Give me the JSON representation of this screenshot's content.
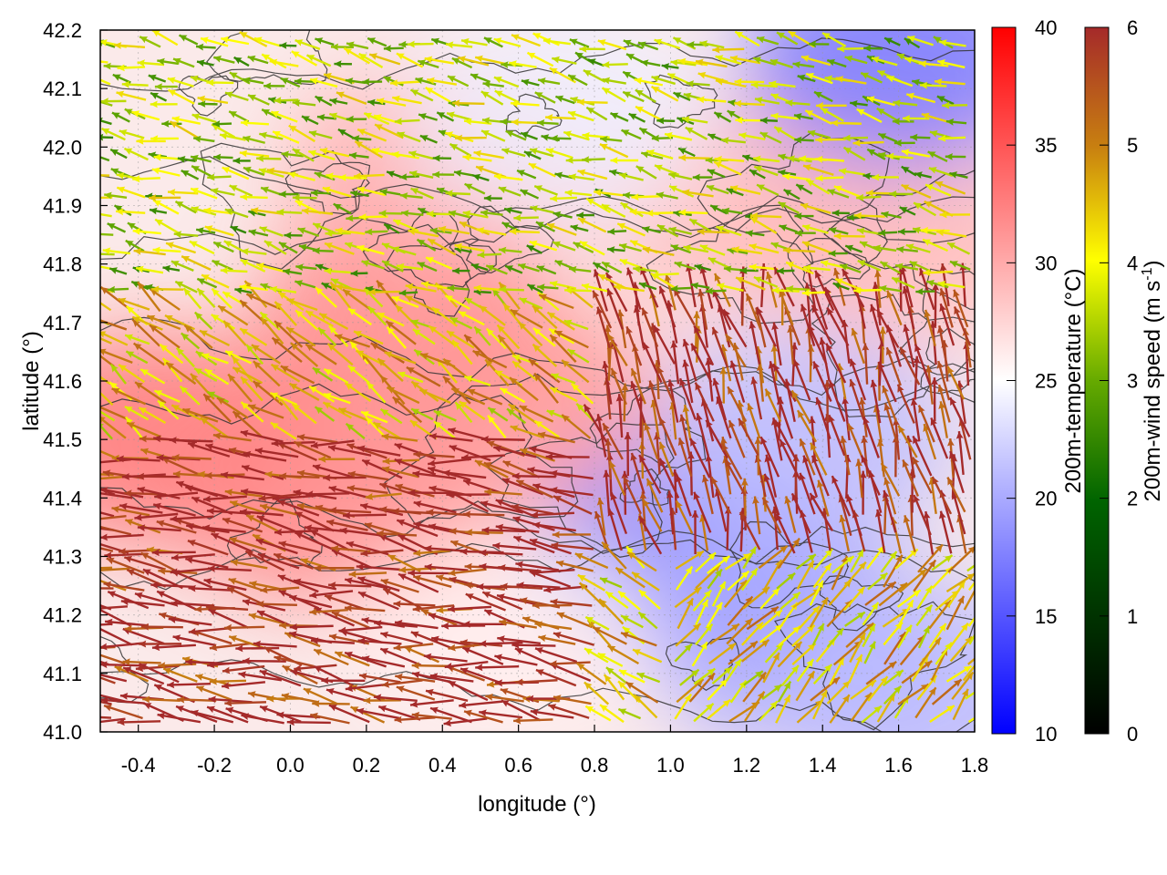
{
  "chart_data": {
    "type": "heatmap",
    "subtype": "map-with-wind-vectors-and-contours",
    "xlabel": "longitude (°)",
    "ylabel": "latitude (°)",
    "xlim": [
      -0.5,
      1.8
    ],
    "ylim": [
      41.0,
      42.2
    ],
    "xticks": [
      "-0.4",
      "-0.2",
      "0.0",
      "0.2",
      "0.4",
      "0.6",
      "0.8",
      "1.0",
      "1.2",
      "1.4",
      "1.6",
      "1.8"
    ],
    "xtick_values": [
      -0.4,
      -0.2,
      0.0,
      0.2,
      0.4,
      0.6,
      0.8,
      1.0,
      1.2,
      1.4,
      1.6,
      1.8
    ],
    "yticks": [
      "41.0",
      "41.1",
      "41.2",
      "41.3",
      "41.4",
      "41.5",
      "41.6",
      "41.7",
      "41.8",
      "41.9",
      "42.0",
      "42.1",
      "42.2"
    ],
    "ytick_values": [
      41.0,
      41.1,
      41.2,
      41.3,
      41.4,
      41.5,
      41.6,
      41.7,
      41.8,
      41.9,
      42.0,
      42.1,
      42.2
    ],
    "grid": true,
    "temperature_colorbar": {
      "label": "200m-temperature (°C)",
      "range": [
        10,
        40
      ],
      "ticks": [
        "10",
        "15",
        "20",
        "25",
        "30",
        "35",
        "40"
      ],
      "tick_values": [
        10,
        15,
        20,
        25,
        30,
        35,
        40
      ],
      "colors": [
        "#0000ff",
        "#ffffff",
        "#ff0000"
      ]
    },
    "wind_colorbar": {
      "label": "200m-wind speed (m s-1)",
      "label_main": "200m-wind speed (m s",
      "label_sup": "-1",
      "label_end": ")",
      "range": [
        0,
        6
      ],
      "ticks": [
        "0",
        "1",
        "2",
        "3",
        "4",
        "5",
        "6"
      ],
      "tick_values": [
        0,
        1,
        2,
        3,
        4,
        5,
        6
      ],
      "colors": [
        "#000000",
        "#006400",
        "#ffff00",
        "#b22222"
      ]
    },
    "temperature_regions": [
      {
        "lon": -0.35,
        "lat": 41.5,
        "temp": 33
      },
      {
        "lon": 0.1,
        "lat": 41.4,
        "temp": 32
      },
      {
        "lon": 0.3,
        "lat": 41.7,
        "temp": 32
      },
      {
        "lon": 0.6,
        "lat": 41.55,
        "temp": 31
      },
      {
        "lon": 0.4,
        "lat": 41.95,
        "temp": 30
      },
      {
        "lon": 1.2,
        "lat": 41.9,
        "temp": 29
      },
      {
        "lon": 1.6,
        "lat": 41.85,
        "temp": 29
      },
      {
        "lon": 0.7,
        "lat": 42.05,
        "temp": 24
      },
      {
        "lon": 1.05,
        "lat": 41.3,
        "temp": 18
      },
      {
        "lon": 1.35,
        "lat": 41.15,
        "temp": 20
      },
      {
        "lon": 1.35,
        "lat": 41.5,
        "temp": 21
      },
      {
        "lon": 1.6,
        "lat": 42.15,
        "temp": 17
      },
      {
        "lon": 0.55,
        "lat": 41.15,
        "temp": 26
      },
      {
        "lon": 1.7,
        "lat": 41.05,
        "temp": 21
      }
    ],
    "wind_regions": [
      {
        "lon_range": [
          -0.5,
          0.8
        ],
        "lat_range": [
          41.0,
          41.5
        ],
        "u": -1.0,
        "v": 0.18,
        "speed": 6
      },
      {
        "lon_range": [
          0.8,
          1.8
        ],
        "lat_range": [
          41.3,
          41.75
        ],
        "u": -0.25,
        "v": 1.0,
        "speed": 6
      },
      {
        "lon_range": [
          1.0,
          1.8
        ],
        "lat_range": [
          41.0,
          41.3
        ],
        "u": 0.7,
        "v": 0.8,
        "speed": 4
      },
      {
        "lon_range": [
          -0.5,
          1.8
        ],
        "lat_range": [
          41.75,
          42.2
        ],
        "u": -0.8,
        "v": 0.2,
        "speed": 3
      }
    ]
  }
}
